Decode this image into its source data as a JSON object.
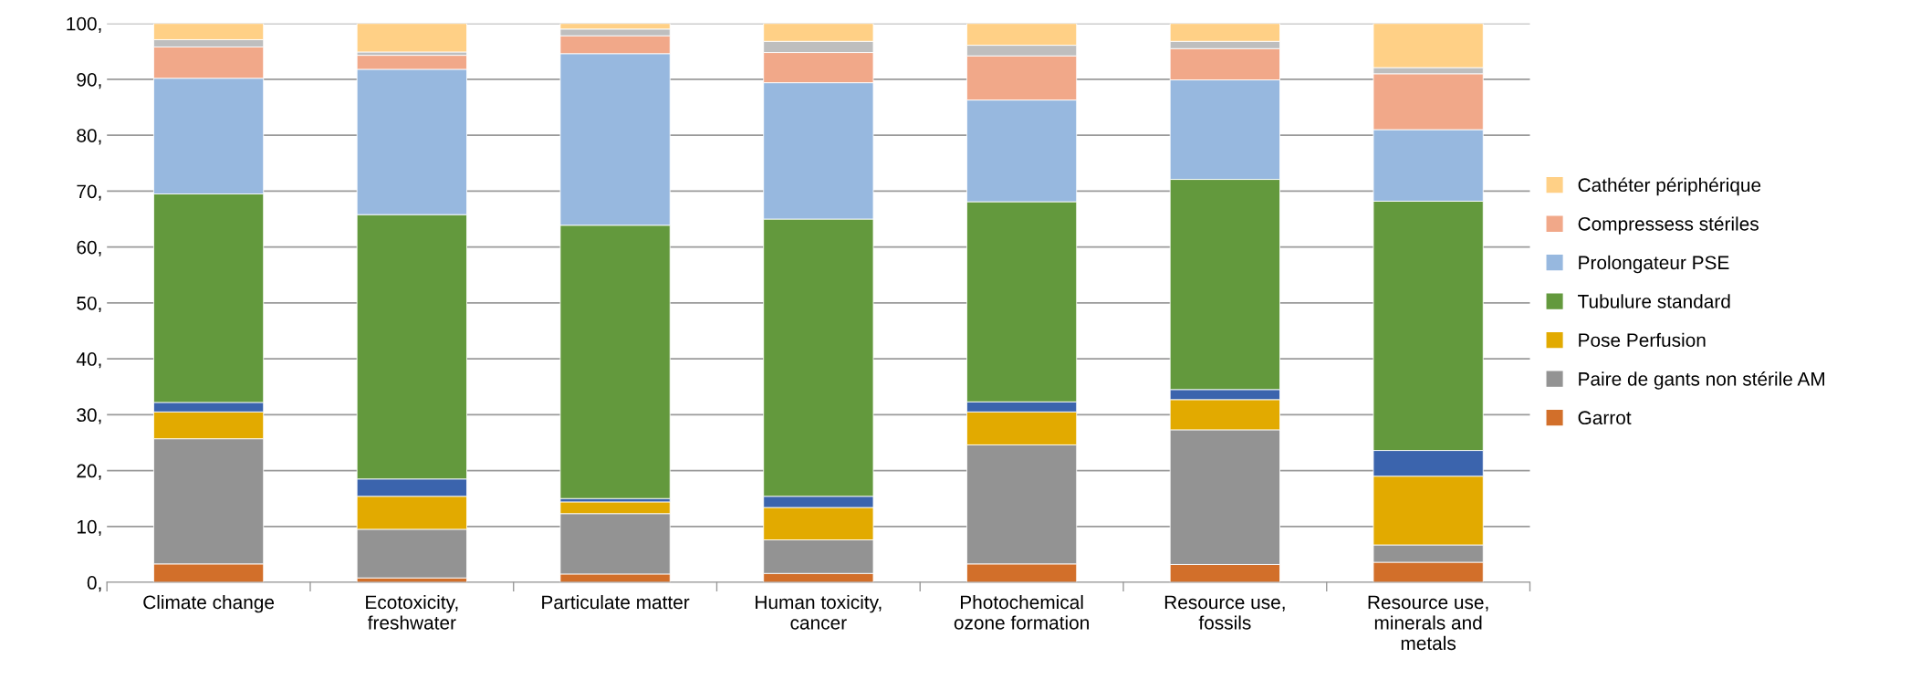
{
  "chart_data": {
    "type": "bar",
    "stacked": true,
    "categories": [
      "Climate change",
      "Ecotoxicity,\nfreshwater",
      "Particulate matter",
      "Human toxicity,\ncancer",
      "Photochemical\nozone formation",
      "Resource use,\nfossils",
      "Resource use,\nminerals and\nmetals"
    ],
    "series": [
      {
        "name": "Garrot",
        "color": "#d26f2a",
        "values": [
          3.3,
          0.8,
          1.5,
          1.6,
          3.3,
          3.2,
          3.6
        ]
      },
      {
        "name": "Paire de gants non stérile AM",
        "color": "#939393",
        "values": [
          22.4,
          8.7,
          10.8,
          6.0,
          21.3,
          24.1,
          3.1
        ]
      },
      {
        "name": "Pose Perfusion",
        "color": "#e2aa00",
        "values": [
          4.8,
          5.9,
          2.1,
          5.8,
          5.9,
          5.4,
          12.3
        ]
      },
      {
        "color": "#3b64ad",
        "values": [
          1.7,
          3.1,
          0.6,
          2.0,
          1.8,
          1.8,
          4.6
        ]
      },
      {
        "name": "Tubulure standard",
        "color": "#63993d",
        "values": [
          37.3,
          47.3,
          48.9,
          49.6,
          35.8,
          37.6,
          44.6
        ]
      },
      {
        "name": "Prolongateur PSE",
        "color": "#97b8df",
        "values": [
          20.7,
          26.0,
          30.7,
          24.4,
          18.2,
          17.8,
          12.8
        ]
      },
      {
        "name": "Compressess stériles",
        "color": "#f1a889",
        "values": [
          5.6,
          2.5,
          3.2,
          5.4,
          7.9,
          5.6,
          10.0
        ]
      },
      {
        "color": "#bebebe",
        "values": [
          1.3,
          0.6,
          1.2,
          2.0,
          1.9,
          1.3,
          1.1
        ]
      },
      {
        "name": "Cathéter périphérique",
        "color": "#ffd086",
        "values": [
          2.9,
          5.1,
          1.0,
          3.2,
          3.9,
          3.2,
          7.9
        ]
      }
    ],
    "ylim": [
      0,
      100
    ],
    "yticks": [
      {
        "value": 0,
        "label": "0,"
      },
      {
        "value": 10,
        "label": "10,"
      },
      {
        "value": 20,
        "label": "20,"
      },
      {
        "value": 30,
        "label": "30,"
      },
      {
        "value": 40,
        "label": "40,"
      },
      {
        "value": 50,
        "label": "50,"
      },
      {
        "value": 60,
        "label": "60,"
      },
      {
        "value": 70,
        "label": "70,"
      },
      {
        "value": 80,
        "label": "80,"
      },
      {
        "value": 90,
        "label": "90,"
      },
      {
        "value": 100,
        "label": "100,"
      }
    ],
    "grid": "y",
    "legend": "right"
  }
}
